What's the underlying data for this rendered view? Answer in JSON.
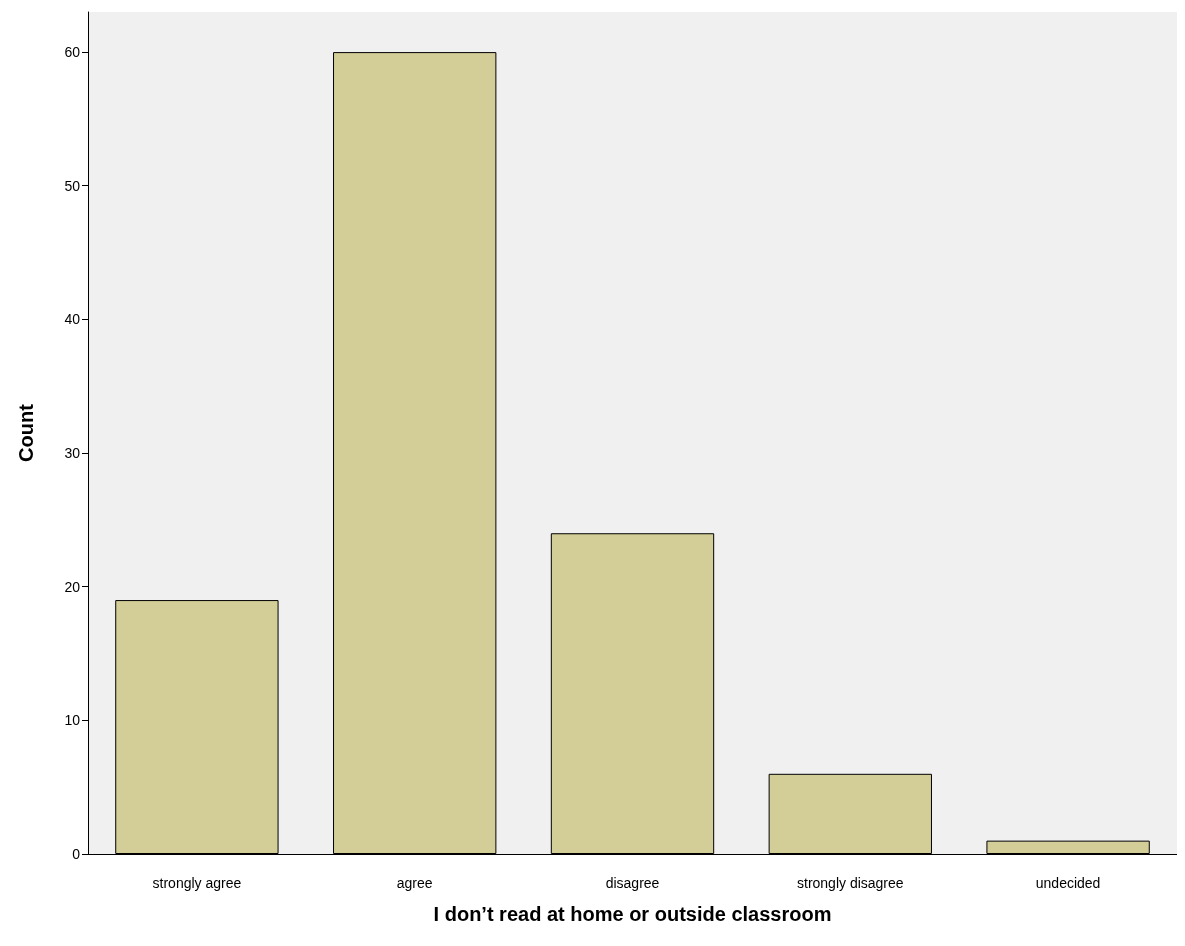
{
  "chart_data": {
    "type": "bar",
    "xlabel": "I don’t read at home or outside classroom",
    "ylabel": "Count",
    "categories": [
      "strongly agree",
      "agree",
      "disagree",
      "strongly disagree",
      "undecided"
    ],
    "values": [
      19,
      60,
      24,
      6,
      1
    ],
    "color": "#d3ce97",
    "ylim": [
      0,
      63
    ],
    "yticks": [
      0,
      10,
      20,
      30,
      40,
      50,
      60
    ],
    "grid": false
  }
}
